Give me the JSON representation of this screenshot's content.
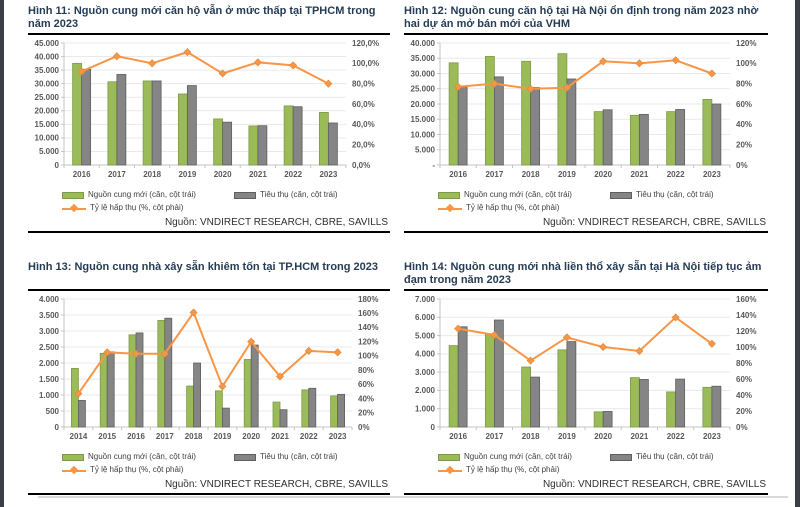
{
  "page": {
    "type": "research-report-figures",
    "edge_color": "#3a3f45"
  },
  "colors": {
    "bar_new_supply": "#9bbb59",
    "bar_new_supply_border": "#7e9a47",
    "bar_absorption": "#858585",
    "bar_absorption_border": "#5f5f5f",
    "line_rate": "#f79646",
    "title_text": "#263c55",
    "axis_text": "#595959",
    "gridline": "#e9e9e9",
    "axis_line": "#c4c4c4"
  },
  "chart_data": [
    {
      "type": "bar",
      "figure_label": "Hình 11",
      "title": "Hình 11: Nguồn cung mới căn hộ vẫn ở mức thấp tại TPHCM trong năm 2023",
      "categories": [
        "2016",
        "2017",
        "2018",
        "2019",
        "2020",
        "2021",
        "2022",
        "2023"
      ],
      "series": [
        {
          "name": "Nguồn cung mới (căn, cột trái)",
          "type": "bar",
          "values": [
            37500,
            30700,
            31000,
            26200,
            17000,
            14400,
            21800,
            19400
          ]
        },
        {
          "name": "Tiêu thụ (căn, cột trái)",
          "type": "bar",
          "values": [
            35300,
            33400,
            31000,
            29300,
            15800,
            14500,
            21500,
            15500
          ]
        },
        {
          "name": "Tỷ lệ hấp thụ (%, cột phải)",
          "type": "line",
          "axis": "right",
          "values": [
            92,
            107,
            100,
            111,
            90,
            101,
            98,
            80
          ]
        }
      ],
      "left_axis": {
        "min": 0,
        "max": 45000,
        "step": 5000,
        "zero_label": "0",
        "format": "dot-thousands"
      },
      "right_axis": {
        "min": 0,
        "max": 120,
        "step": 20,
        "format": "percent-comma"
      },
      "grid": true,
      "legend_position": "bottom",
      "source": "Nguồn: VNDIRECT RESEARCH, CBRE, SAVILLS"
    },
    {
      "type": "bar",
      "figure_label": "Hình 12",
      "title": "Hình 12: Nguồn cung căn hộ tại Hà Nội ổn định trong năm 2023 nhờ hai dự án mở bán mới của VHM",
      "categories": [
        "2016",
        "2017",
        "2018",
        "2019",
        "2020",
        "2021",
        "2022",
        "2023"
      ],
      "series": [
        {
          "name": "Nguồn cung mới (căn, cột trái)",
          "type": "bar",
          "values": [
            33500,
            35600,
            34000,
            36500,
            17500,
            16300,
            17500,
            21500
          ]
        },
        {
          "name": "Tiêu thụ (căn, cột trái)",
          "type": "bar",
          "values": [
            25700,
            28900,
            25400,
            28200,
            18100,
            16600,
            18200,
            20000
          ]
        },
        {
          "name": "Tỷ lệ hấp thụ (%, cột phải)",
          "type": "line",
          "axis": "right",
          "values": [
            77,
            80,
            75,
            76,
            102,
            100,
            103,
            90
          ]
        }
      ],
      "left_axis": {
        "min": 0,
        "max": 40000,
        "step": 5000,
        "zero_label": "-",
        "format": "dot-thousands"
      },
      "right_axis": {
        "min": 0,
        "max": 120,
        "step": 20,
        "format": "percent"
      },
      "grid": true,
      "legend_position": "bottom",
      "source": "Nguồn: VNDIRECT RESEARCH, CBRE, SAVILLS"
    },
    {
      "type": "bar",
      "figure_label": "Hình 13",
      "title": "Hình 13: Nguồn cung nhà xây sẵn khiêm tốn tại TP.HCM trong 2023",
      "categories": [
        "2014",
        "2015",
        "2016",
        "2017",
        "2018",
        "2019",
        "2020",
        "2021",
        "2022",
        "2023"
      ],
      "series": [
        {
          "name": "Nguồn cung mới (căn, cột trái)",
          "type": "bar",
          "values": [
            1830,
            2300,
            2880,
            3330,
            1280,
            1130,
            2110,
            780,
            1160,
            970
          ]
        },
        {
          "name": "Tiêu thụ (căn, cột trái)",
          "type": "bar",
          "values": [
            830,
            2350,
            2940,
            3400,
            2000,
            590,
            2560,
            540,
            1210,
            1020
          ]
        },
        {
          "name": "Tỷ lệ hấp thụ (%, cột phải)",
          "type": "line",
          "axis": "right",
          "values": [
            47,
            105,
            103,
            103,
            161,
            57,
            120,
            71,
            107,
            105
          ]
        }
      ],
      "left_axis": {
        "min": 0,
        "max": 4000,
        "step": 500,
        "zero_label": "0",
        "format": "dot-thousands"
      },
      "right_axis": {
        "min": 0,
        "max": 180,
        "step": 20,
        "format": "percent"
      },
      "grid": true,
      "legend_position": "bottom",
      "source": "Nguồn: VNDIRECT RESEARCH, CBRE, SAVILLS"
    },
    {
      "type": "bar",
      "figure_label": "Hình 14",
      "title": "Hình 14: Nguồn cung mới nhà liền thổ xây sẵn tại Hà Nội tiếp tục ảm đạm trong năm 2023",
      "categories": [
        "2016",
        "2017",
        "2018",
        "2019",
        "2020",
        "2021",
        "2022",
        "2023"
      ],
      "series": [
        {
          "name": "Nguồn cung mới (căn, cột trái)",
          "type": "bar",
          "values": [
            4450,
            5050,
            3280,
            4220,
            830,
            2700,
            1920,
            2170
          ]
        },
        {
          "name": "Tiêu thụ (căn, cột trái)",
          "type": "bar",
          "values": [
            5480,
            5850,
            2730,
            4670,
            850,
            2600,
            2620,
            2230
          ]
        },
        {
          "name": "Tỷ lệ hấp thụ (%, cột phải)",
          "type": "line",
          "axis": "right",
          "values": [
            123,
            115,
            83,
            112,
            100,
            95,
            137,
            104
          ]
        }
      ],
      "left_axis": {
        "min": 0,
        "max": 7000,
        "step": 1000,
        "zero_label": "0",
        "format": "dot-thousands"
      },
      "right_axis": {
        "min": 0,
        "max": 160,
        "step": 20,
        "format": "percent"
      },
      "grid": true,
      "legend_position": "bottom",
      "source": "Nguồn: VNDIRECT RESEARCH, CBRE, SAVILLS"
    }
  ]
}
